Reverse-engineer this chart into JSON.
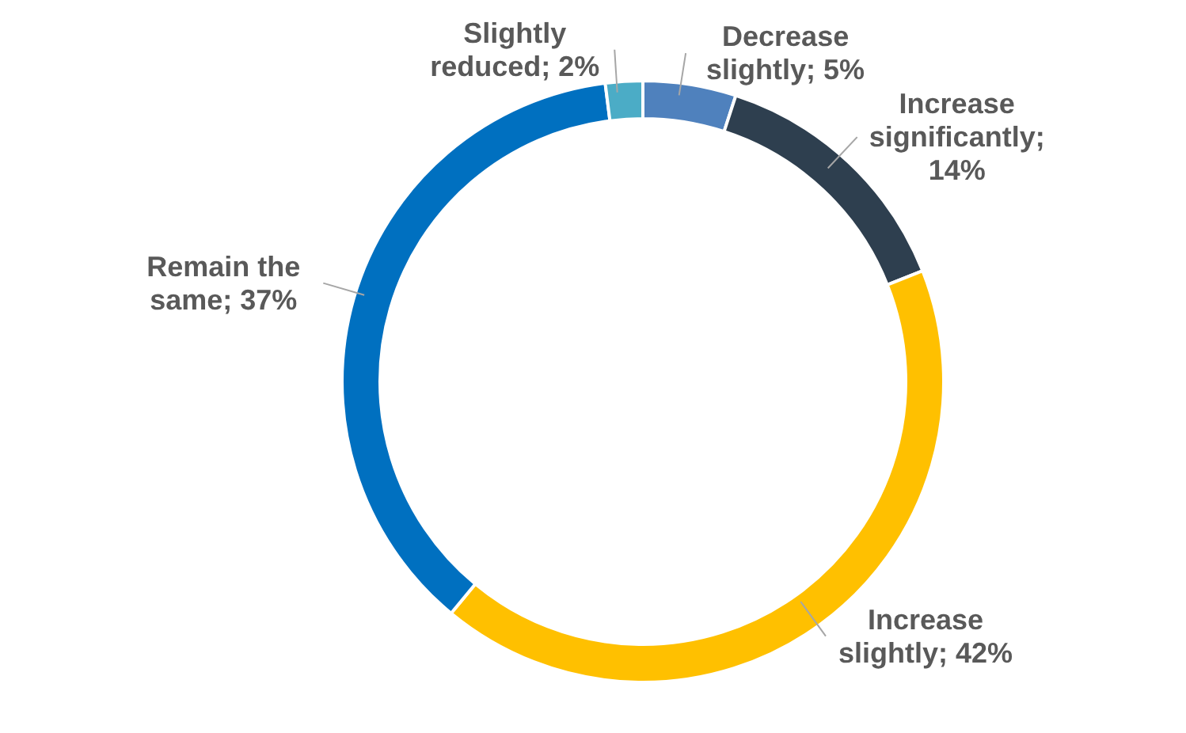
{
  "chart_data": {
    "type": "donut",
    "categories": [
      "Decrease slightly",
      "Increase significantly",
      "Increase slightly",
      "Remain the same",
      "Slightly reduced"
    ],
    "values": [
      5,
      14,
      42,
      37,
      2
    ],
    "value_labels": [
      "; 5%",
      "; 14%",
      "; 42%",
      "; 37%",
      "; 2%"
    ],
    "colors": [
      "#4f81bd",
      "#2e3f4f",
      "#ffc000",
      "#0070c0",
      "#4bacc6"
    ]
  }
}
